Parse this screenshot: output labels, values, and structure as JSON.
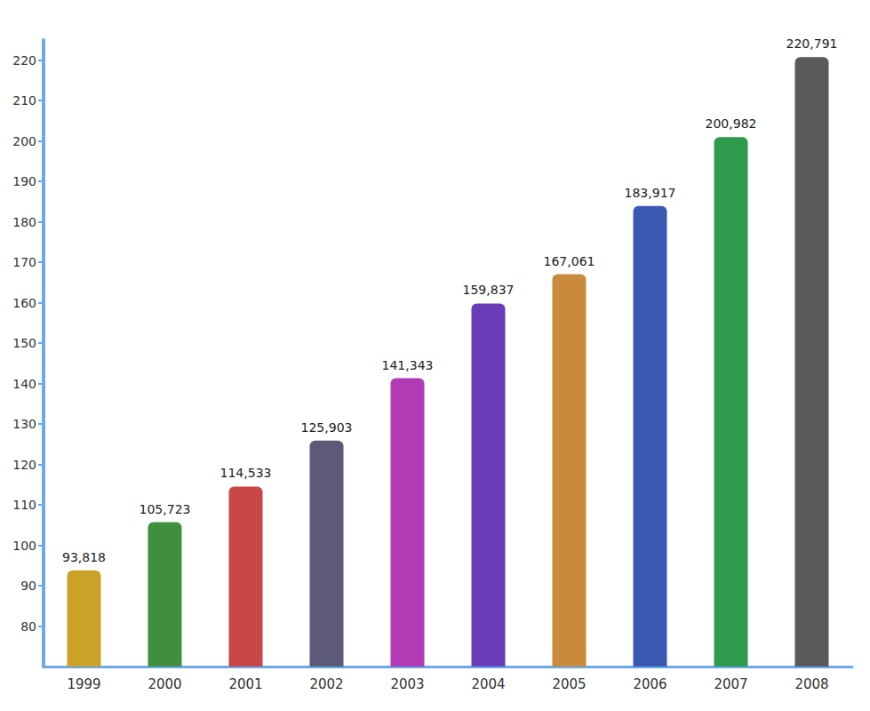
{
  "chart_data": {
    "type": "bar",
    "categories": [
      "1999",
      "2000",
      "2001",
      "2002",
      "2003",
      "2004",
      "2005",
      "2006",
      "2007",
      "2008"
    ],
    "values": [
      93.818,
      105.723,
      114.533,
      125.903,
      141.343,
      159.837,
      167.061,
      183.917,
      200.982,
      220.791
    ],
    "value_labels": [
      "93,818",
      "105,723",
      "114,533",
      "125,903",
      "141,343",
      "159,837",
      "167,061",
      "183,917",
      "200,982",
      "220,791"
    ],
    "colors": [
      "#c9a227",
      "#3f8f3f",
      "#c84848",
      "#5c5a78",
      "#b23ab4",
      "#6a3cb8",
      "#c98a3c",
      "#3a58b2",
      "#2f9a4c",
      "#5a5a5a"
    ],
    "ylim": [
      70,
      225
    ],
    "yticks": [
      80,
      90,
      100,
      110,
      120,
      130,
      140,
      150,
      160,
      170,
      180,
      190,
      200,
      210,
      220
    ],
    "grid": false,
    "data_labels": true
  }
}
